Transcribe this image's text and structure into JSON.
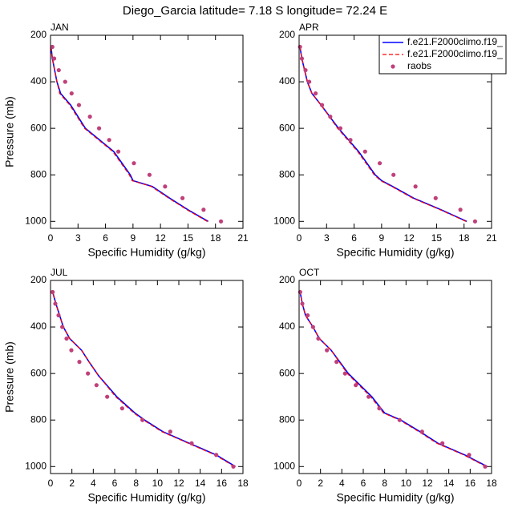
{
  "title": "Diego_Garcia  latitude= 7.18 S longitude= 72.24 E",
  "chart_data": [
    {
      "type": "line",
      "panel": "JAN",
      "xlabel": "Specific Humidity (g/kg)",
      "ylabel": "Pressure (mb)",
      "xlim": [
        0,
        21
      ],
      "xticks": [
        0,
        3,
        6,
        9,
        12,
        15,
        18,
        21
      ],
      "ylim": [
        200,
        1030
      ],
      "yticks": [
        200,
        400,
        600,
        800,
        1000
      ],
      "y_reversed": true,
      "series": [
        {
          "name": "f.e21.F2000climo.f19_",
          "color": "#0000ff",
          "style": "solid",
          "y": [
            1000,
            950,
            900,
            850,
            825,
            800,
            700,
            600,
            500,
            450,
            400,
            300,
            250
          ],
          "x": [
            17.2,
            15.0,
            13.0,
            11.1,
            9.0,
            8.7,
            6.9,
            3.8,
            2.2,
            1.1,
            0.7,
            0.2,
            0.05
          ]
        },
        {
          "name": "f.e21.F2000climo.f19_",
          "color": "#ff0000",
          "style": "dashed",
          "y": [
            1000,
            950,
            900,
            850,
            825,
            800,
            700,
            600,
            500,
            450,
            400,
            300,
            250
          ],
          "x": [
            17.1,
            14.9,
            12.9,
            11.0,
            8.9,
            8.6,
            6.8,
            3.7,
            2.1,
            1.0,
            0.7,
            0.2,
            0.05
          ]
        },
        {
          "name": "raobs",
          "color": "#c0407a",
          "style": "markers",
          "y": [
            250,
            300,
            350,
            400,
            450,
            500,
            550,
            600,
            650,
            700,
            750,
            800,
            850,
            900,
            950,
            1000
          ],
          "x": [
            0.2,
            0.4,
            0.9,
            1.6,
            2.3,
            3.1,
            4.3,
            5.3,
            6.4,
            7.4,
            9.1,
            10.8,
            12.5,
            14.4,
            16.7,
            18.6
          ]
        }
      ]
    },
    {
      "type": "line",
      "panel": "APR",
      "xlabel": "Specific Humidity (g/kg)",
      "xlim": [
        0,
        21
      ],
      "xticks": [
        0,
        3,
        6,
        9,
        12,
        15,
        18,
        21
      ],
      "ylim": [
        200,
        1030
      ],
      "yticks": [
        200,
        400,
        600,
        800,
        1000
      ],
      "y_reversed": true,
      "legend": "upper right",
      "series": [
        {
          "name": "f.e21.F2000climo.f19_",
          "color": "#0000ff",
          "style": "solid",
          "y": [
            1000,
            950,
            900,
            850,
            825,
            800,
            700,
            600,
            500,
            450,
            400,
            300,
            250
          ],
          "x": [
            18.3,
            15.5,
            12.5,
            10.2,
            9.0,
            8.3,
            6.5,
            4.3,
            2.4,
            1.4,
            0.9,
            0.3,
            0.1
          ]
        },
        {
          "name": "f.e21.F2000climo.f19_",
          "color": "#ff0000",
          "style": "dashed",
          "y": [
            1000,
            950,
            900,
            850,
            825,
            800,
            700,
            600,
            500,
            450,
            400,
            300,
            250
          ],
          "x": [
            18.2,
            15.4,
            12.4,
            10.1,
            8.9,
            8.2,
            6.4,
            4.2,
            2.4,
            1.4,
            0.9,
            0.3,
            0.1
          ]
        },
        {
          "name": "raobs",
          "color": "#c0407a",
          "style": "markers",
          "y": [
            250,
            300,
            350,
            400,
            450,
            500,
            550,
            600,
            650,
            700,
            750,
            800,
            850,
            900,
            950,
            1000
          ],
          "x": [
            0.1,
            0.3,
            0.7,
            1.1,
            1.8,
            2.5,
            3.4,
            4.5,
            5.6,
            7.2,
            8.8,
            10.3,
            12.7,
            14.9,
            17.6,
            19.2
          ]
        }
      ]
    },
    {
      "type": "line",
      "panel": "JUL",
      "xlabel": "Specific Humidity (g/kg)",
      "ylabel": "Pressure (mb)",
      "xlim": [
        0,
        18
      ],
      "xticks": [
        0,
        2,
        4,
        6,
        8,
        10,
        12,
        14,
        16,
        18
      ],
      "ylim": [
        200,
        1030
      ],
      "yticks": [
        200,
        400,
        600,
        800,
        1000
      ],
      "y_reversed": true,
      "series": [
        {
          "name": "f.e21.F2000climo.f19_",
          "color": "#0000ff",
          "style": "solid",
          "y": [
            1000,
            950,
            900,
            850,
            800,
            770,
            700,
            610,
            550,
            500,
            450,
            400,
            300,
            250
          ],
          "x": [
            17.3,
            15.5,
            13.0,
            10.5,
            8.8,
            7.9,
            6.2,
            4.5,
            3.6,
            2.9,
            1.8,
            1.2,
            0.5,
            0.2
          ]
        },
        {
          "name": "f.e21.F2000climo.f19_",
          "color": "#ff0000",
          "style": "dashed",
          "y": [
            1000,
            950,
            900,
            850,
            800,
            770,
            700,
            610,
            550,
            500,
            450,
            400,
            300,
            250
          ],
          "x": [
            17.2,
            15.4,
            12.9,
            10.4,
            8.7,
            7.8,
            6.1,
            4.5,
            3.6,
            2.9,
            1.8,
            1.2,
            0.5,
            0.2
          ]
        },
        {
          "name": "raobs",
          "color": "#c0407a",
          "style": "markers",
          "y": [
            250,
            300,
            350,
            400,
            450,
            500,
            550,
            600,
            650,
            700,
            750,
            800,
            850,
            900,
            950,
            1000
          ],
          "x": [
            0.2,
            0.45,
            0.75,
            1.1,
            1.5,
            1.95,
            2.7,
            3.5,
            4.3,
            5.3,
            6.7,
            8.6,
            11.2,
            13.2,
            15.5,
            17.1
          ]
        }
      ]
    },
    {
      "type": "line",
      "panel": "OCT",
      "xlabel": "Specific Humidity (g/kg)",
      "xlim": [
        0,
        18
      ],
      "xticks": [
        0,
        2,
        4,
        6,
        8,
        10,
        12,
        14,
        16,
        18
      ],
      "ylim": [
        200,
        1030
      ],
      "yticks": [
        200,
        400,
        600,
        800,
        1000
      ],
      "y_reversed": true,
      "series": [
        {
          "name": "f.e21.F2000climo.f19_",
          "color": "#0000ff",
          "style": "solid",
          "y": [
            1000,
            950,
            900,
            850,
            800,
            770,
            700,
            600,
            500,
            450,
            400,
            350,
            300,
            250
          ],
          "x": [
            17.6,
            15.5,
            13.0,
            11.3,
            9.5,
            8.0,
            6.8,
            4.6,
            3.0,
            1.9,
            1.3,
            0.6,
            0.3,
            0.1
          ]
        },
        {
          "name": "f.e21.F2000climo.f19_",
          "color": "#ff0000",
          "style": "dashed",
          "y": [
            1000,
            950,
            900,
            850,
            800,
            770,
            700,
            600,
            500,
            450,
            400,
            350,
            300,
            250
          ],
          "x": [
            17.5,
            15.4,
            12.9,
            11.2,
            9.4,
            7.9,
            6.7,
            4.5,
            3.0,
            1.9,
            1.3,
            0.6,
            0.3,
            0.1
          ]
        },
        {
          "name": "raobs",
          "color": "#c0407a",
          "style": "markers",
          "y": [
            250,
            300,
            350,
            400,
            450,
            500,
            550,
            600,
            650,
            700,
            750,
            800,
            850,
            900,
            950,
            1000
          ],
          "x": [
            0.1,
            0.3,
            0.8,
            1.3,
            1.8,
            2.6,
            3.5,
            4.3,
            5.3,
            6.5,
            7.5,
            9.4,
            11.5,
            13.4,
            15.9,
            17.4
          ]
        }
      ]
    }
  ]
}
